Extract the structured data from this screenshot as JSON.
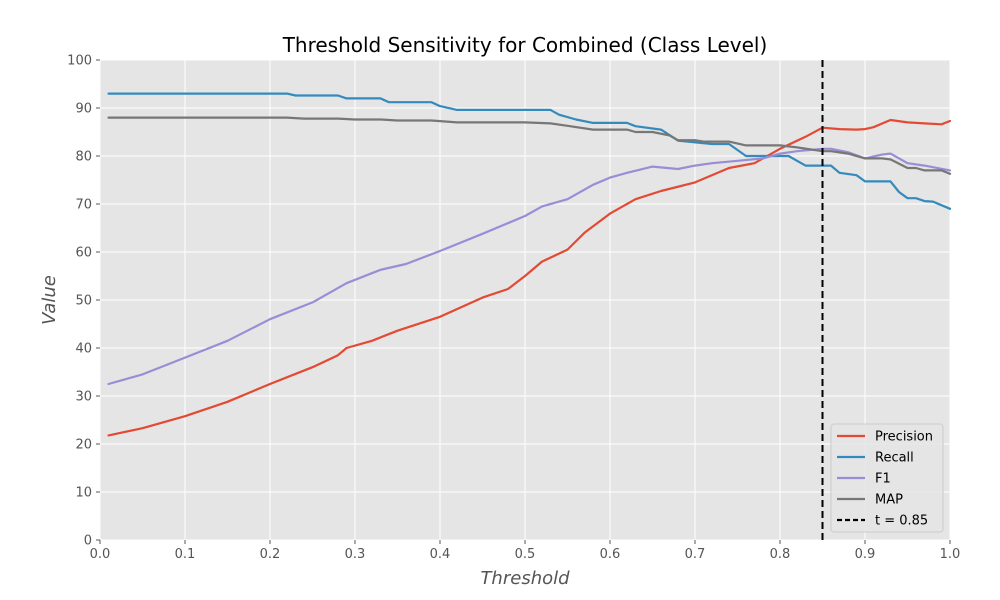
{
  "chart_data": {
    "type": "line",
    "style": "ggplot",
    "title": "Threshold Sensitivity for Combined (Class Level)",
    "xlabel": "Threshold",
    "ylabel": "Value",
    "xlim": [
      0,
      1
    ],
    "ylim": [
      0,
      100
    ],
    "xticks": [
      0,
      0.1,
      0.2,
      0.3,
      0.4,
      0.5,
      0.6,
      0.7,
      0.8,
      0.9,
      1.0
    ],
    "xtick_labels": [
      "0.0",
      "0.1",
      "0.2",
      "0.3",
      "0.4",
      "0.5",
      "0.6",
      "0.7",
      "0.8",
      "0.9",
      "1.0"
    ],
    "yticks": [
      0,
      10,
      20,
      30,
      40,
      50,
      60,
      70,
      80,
      90,
      100
    ],
    "ytick_labels": [
      "0",
      "10",
      "20",
      "30",
      "40",
      "50",
      "60",
      "70",
      "80",
      "90",
      "100"
    ],
    "grid": true,
    "legend_position": "lower-right",
    "series": [
      {
        "name": "Precision",
        "color": "#E24A33",
        "points": [
          [
            0.01,
            21.8
          ],
          [
            0.05,
            23.3
          ],
          [
            0.1,
            25.8
          ],
          [
            0.15,
            28.8
          ],
          [
            0.2,
            32.5
          ],
          [
            0.25,
            36.0
          ],
          [
            0.28,
            38.5
          ],
          [
            0.29,
            40.0
          ],
          [
            0.32,
            41.5
          ],
          [
            0.35,
            43.6
          ],
          [
            0.4,
            46.5
          ],
          [
            0.45,
            50.5
          ],
          [
            0.48,
            52.3
          ],
          [
            0.5,
            55.0
          ],
          [
            0.52,
            58.0
          ],
          [
            0.55,
            60.5
          ],
          [
            0.57,
            64.0
          ],
          [
            0.6,
            68.0
          ],
          [
            0.63,
            71.0
          ],
          [
            0.66,
            72.7
          ],
          [
            0.7,
            74.5
          ],
          [
            0.74,
            77.5
          ],
          [
            0.77,
            78.5
          ],
          [
            0.8,
            81.5
          ],
          [
            0.83,
            84.0
          ],
          [
            0.85,
            85.9
          ],
          [
            0.87,
            85.6
          ],
          [
            0.89,
            85.5
          ],
          [
            0.9,
            85.6
          ],
          [
            0.91,
            86.0
          ],
          [
            0.93,
            87.5
          ],
          [
            0.95,
            87.0
          ],
          [
            0.97,
            86.8
          ],
          [
            0.99,
            86.6
          ],
          [
            1.0,
            87.3
          ]
        ]
      },
      {
        "name": "Recall",
        "color": "#348ABD",
        "points": [
          [
            0.01,
            93.0
          ],
          [
            0.22,
            93.0
          ],
          [
            0.23,
            92.6
          ],
          [
            0.28,
            92.6
          ],
          [
            0.29,
            92.0
          ],
          [
            0.33,
            92.0
          ],
          [
            0.34,
            91.2
          ],
          [
            0.39,
            91.2
          ],
          [
            0.4,
            90.4
          ],
          [
            0.42,
            89.6
          ],
          [
            0.53,
            89.6
          ],
          [
            0.54,
            88.6
          ],
          [
            0.56,
            87.6
          ],
          [
            0.58,
            86.9
          ],
          [
            0.62,
            86.9
          ],
          [
            0.63,
            86.2
          ],
          [
            0.66,
            85.5
          ],
          [
            0.68,
            83.2
          ],
          [
            0.72,
            82.5
          ],
          [
            0.74,
            82.5
          ],
          [
            0.76,
            80.0
          ],
          [
            0.81,
            80.0
          ],
          [
            0.83,
            78.0
          ],
          [
            0.86,
            78.0
          ],
          [
            0.87,
            76.5
          ],
          [
            0.89,
            76.0
          ],
          [
            0.9,
            74.7
          ],
          [
            0.93,
            74.7
          ],
          [
            0.94,
            72.5
          ],
          [
            0.95,
            71.2
          ],
          [
            0.96,
            71.2
          ],
          [
            0.97,
            70.6
          ],
          [
            0.98,
            70.5
          ],
          [
            1.0,
            69.0
          ]
        ]
      },
      {
        "name": "F1",
        "color": "#988ED5",
        "points": [
          [
            0.01,
            32.5
          ],
          [
            0.05,
            34.5
          ],
          [
            0.1,
            38.0
          ],
          [
            0.15,
            41.5
          ],
          [
            0.2,
            46.0
          ],
          [
            0.25,
            49.5
          ],
          [
            0.29,
            53.5
          ],
          [
            0.33,
            56.3
          ],
          [
            0.36,
            57.5
          ],
          [
            0.4,
            60.2
          ],
          [
            0.45,
            63.8
          ],
          [
            0.5,
            67.5
          ],
          [
            0.52,
            69.5
          ],
          [
            0.55,
            71.0
          ],
          [
            0.58,
            74.0
          ],
          [
            0.6,
            75.5
          ],
          [
            0.62,
            76.5
          ],
          [
            0.65,
            77.8
          ],
          [
            0.68,
            77.3
          ],
          [
            0.7,
            78.0
          ],
          [
            0.72,
            78.5
          ],
          [
            0.75,
            79.0
          ],
          [
            0.78,
            79.5
          ],
          [
            0.8,
            80.5
          ],
          [
            0.82,
            81.0
          ],
          [
            0.85,
            81.5
          ],
          [
            0.86,
            81.5
          ],
          [
            0.88,
            80.8
          ],
          [
            0.9,
            79.5
          ],
          [
            0.92,
            80.3
          ],
          [
            0.93,
            80.5
          ],
          [
            0.95,
            78.5
          ],
          [
            0.97,
            78.0
          ],
          [
            1.0,
            77.0
          ]
        ]
      },
      {
        "name": "MAP",
        "color": "#777777",
        "points": [
          [
            0.01,
            88.0
          ],
          [
            0.22,
            88.0
          ],
          [
            0.24,
            87.8
          ],
          [
            0.28,
            87.8
          ],
          [
            0.3,
            87.6
          ],
          [
            0.33,
            87.6
          ],
          [
            0.35,
            87.4
          ],
          [
            0.39,
            87.4
          ],
          [
            0.42,
            87.0
          ],
          [
            0.5,
            87.0
          ],
          [
            0.53,
            86.8
          ],
          [
            0.55,
            86.3
          ],
          [
            0.58,
            85.5
          ],
          [
            0.62,
            85.5
          ],
          [
            0.63,
            85.0
          ],
          [
            0.65,
            85.0
          ],
          [
            0.67,
            84.3
          ],
          [
            0.68,
            83.3
          ],
          [
            0.7,
            83.3
          ],
          [
            0.71,
            83.0
          ],
          [
            0.74,
            83.0
          ],
          [
            0.76,
            82.2
          ],
          [
            0.8,
            82.2
          ],
          [
            0.82,
            81.8
          ],
          [
            0.85,
            81.0
          ],
          [
            0.86,
            81.0
          ],
          [
            0.88,
            80.5
          ],
          [
            0.9,
            79.5
          ],
          [
            0.92,
            79.5
          ],
          [
            0.93,
            79.3
          ],
          [
            0.95,
            77.5
          ],
          [
            0.96,
            77.5
          ],
          [
            0.97,
            77.0
          ],
          [
            0.99,
            77.0
          ],
          [
            1.0,
            76.3
          ]
        ]
      }
    ],
    "vline": {
      "x": 0.85,
      "label": "t = 0.85",
      "color": "#000000",
      "style": "dashed"
    },
    "legend": [
      "Precision",
      "Recall",
      "F1",
      "MAP",
      "t = 0.85"
    ]
  }
}
